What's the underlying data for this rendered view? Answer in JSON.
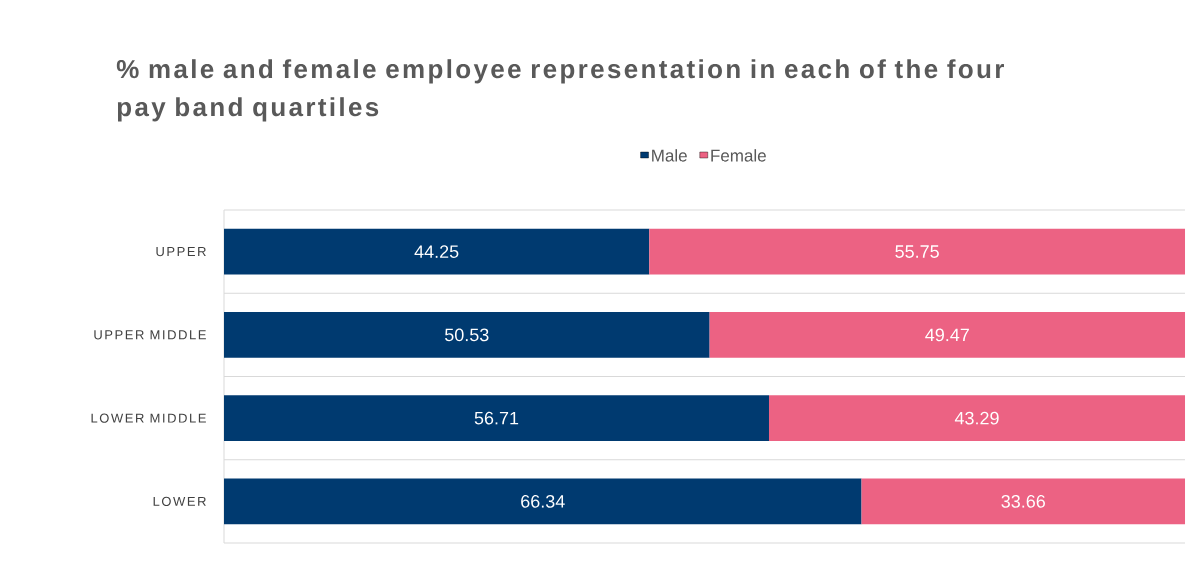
{
  "chart_data": {
    "type": "bar",
    "orientation": "horizontal",
    "stacked": true,
    "title": "% male and female employee representation in each of the four pay band quartiles",
    "categories": [
      "UPPER",
      "UPPER MIDDLE",
      "LOWER MIDDLE",
      "LOWER"
    ],
    "series": [
      {
        "name": "Male",
        "color": "#003a70",
        "values": [
          44.25,
          50.53,
          56.71,
          66.34
        ]
      },
      {
        "name": "Female",
        "color": "#ec6283",
        "values": [
          55.75,
          49.47,
          43.29,
          33.66
        ]
      }
    ],
    "tick_labels": "y",
    "data_labels": true,
    "grid": "y",
    "legend": "top"
  }
}
